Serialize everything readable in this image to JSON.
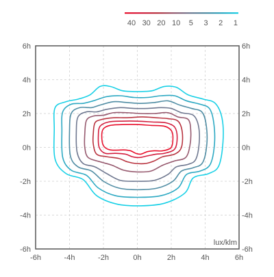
{
  "chart_data": {
    "type": "contour",
    "title": "",
    "unit_label": "lux/klm",
    "xlim": [
      -6,
      6
    ],
    "ylim": [
      -6,
      6
    ],
    "grid": true,
    "legend_placement": "top-right",
    "x_ticks": [
      {
        "value": -6,
        "label": "-6h"
      },
      {
        "value": -4,
        "label": "-4h"
      },
      {
        "value": -2,
        "label": "-2h"
      },
      {
        "value": 0,
        "label": "0h"
      },
      {
        "value": 2,
        "label": "2h"
      },
      {
        "value": 4,
        "label": "4h"
      },
      {
        "value": 6,
        "label": "6h"
      }
    ],
    "y_ticks": [
      {
        "value": -6,
        "label": "-6h"
      },
      {
        "value": -4,
        "label": "-4h"
      },
      {
        "value": -2,
        "label": "-2h"
      },
      {
        "value": 0,
        "label": "0h"
      },
      {
        "value": 2,
        "label": "2h"
      },
      {
        "value": 4,
        "label": "4h"
      },
      {
        "value": 6,
        "label": "6h"
      }
    ],
    "levels": [
      {
        "value": 40,
        "label": "40",
        "color": "#e8112d",
        "points": [
          [
            -2.1,
            0.7
          ],
          [
            -2.0,
            1.1
          ],
          [
            -1.6,
            1.3
          ],
          [
            -0.8,
            1.35
          ],
          [
            0,
            1.35
          ],
          [
            0.8,
            1.3
          ],
          [
            1.6,
            1.25
          ],
          [
            2.0,
            1.0
          ],
          [
            2.1,
            0.6
          ],
          [
            2.0,
            0.0
          ],
          [
            1.5,
            -0.2
          ],
          [
            1.0,
            -0.2
          ],
          [
            0.6,
            -0.25
          ],
          [
            0.2,
            -0.4
          ],
          [
            -0.1,
            -0.35
          ],
          [
            -0.4,
            -0.2
          ],
          [
            -0.8,
            -0.15
          ],
          [
            -1.6,
            -0.15
          ],
          [
            -2.0,
            0.1
          ]
        ]
      },
      {
        "value": 30,
        "label": "30",
        "color": "#d31c3c",
        "points": [
          [
            -2.3,
            0.7
          ],
          [
            -2.2,
            1.25
          ],
          [
            -1.7,
            1.5
          ],
          [
            -0.9,
            1.55
          ],
          [
            0,
            1.55
          ],
          [
            0.9,
            1.5
          ],
          [
            1.7,
            1.45
          ],
          [
            2.2,
            1.2
          ],
          [
            2.35,
            0.6
          ],
          [
            2.2,
            -0.1
          ],
          [
            1.6,
            -0.35
          ],
          [
            1.1,
            -0.4
          ],
          [
            0.6,
            -0.5
          ],
          [
            0.1,
            -0.6
          ],
          [
            -0.3,
            -0.55
          ],
          [
            -0.7,
            -0.4
          ],
          [
            -1.3,
            -0.35
          ],
          [
            -1.9,
            -0.35
          ],
          [
            -2.25,
            0.0
          ]
        ]
      },
      {
        "value": 20,
        "label": "20",
        "color": "#b8333f",
        "points": [
          [
            -2.6,
            0.8
          ],
          [
            -2.5,
            1.45
          ],
          [
            -2.1,
            1.65
          ],
          [
            -1.4,
            1.75
          ],
          [
            -0.6,
            1.75
          ],
          [
            0.3,
            1.8
          ],
          [
            1.1,
            1.75
          ],
          [
            1.8,
            1.7
          ],
          [
            2.4,
            1.55
          ],
          [
            2.65,
            0.9
          ],
          [
            2.6,
            0.0
          ],
          [
            2.2,
            -0.4
          ],
          [
            1.5,
            -0.55
          ],
          [
            1.0,
            -0.8
          ],
          [
            0.5,
            -0.95
          ],
          [
            -0.1,
            -0.95
          ],
          [
            -0.6,
            -0.85
          ],
          [
            -1.1,
            -0.65
          ],
          [
            -1.8,
            -0.55
          ],
          [
            -2.4,
            -0.4
          ],
          [
            -2.6,
            0.2
          ]
        ]
      },
      {
        "value": 10,
        "label": "10",
        "color": "#96596e",
        "points": [
          [
            -3.1,
            0.8
          ],
          [
            -3.0,
            1.6
          ],
          [
            -2.6,
            1.85
          ],
          [
            -2.0,
            1.9
          ],
          [
            -1.4,
            2.05
          ],
          [
            -0.6,
            2.05
          ],
          [
            0.2,
            2.0
          ],
          [
            1.0,
            2.0
          ],
          [
            1.8,
            2.05
          ],
          [
            2.4,
            1.8
          ],
          [
            3.0,
            1.65
          ],
          [
            3.15,
            1.0
          ],
          [
            3.1,
            0.1
          ],
          [
            2.85,
            -0.6
          ],
          [
            2.2,
            -0.8
          ],
          [
            1.5,
            -1.05
          ],
          [
            0.8,
            -1.4
          ],
          [
            0.0,
            -1.45
          ],
          [
            -0.8,
            -1.35
          ],
          [
            -1.5,
            -1.05
          ],
          [
            -2.2,
            -0.85
          ],
          [
            -2.9,
            -0.6
          ],
          [
            -3.1,
            0.0
          ]
        ]
      },
      {
        "value": 5,
        "label": "5",
        "color": "#6f7890",
        "points": [
          [
            -3.6,
            0.9
          ],
          [
            -3.5,
            1.8
          ],
          [
            -3.0,
            2.1
          ],
          [
            -2.4,
            2.1
          ],
          [
            -1.8,
            2.25
          ],
          [
            -1.0,
            2.35
          ],
          [
            -0.2,
            2.3
          ],
          [
            0.6,
            2.3
          ],
          [
            1.4,
            2.35
          ],
          [
            2.0,
            2.3
          ],
          [
            2.6,
            2.05
          ],
          [
            3.3,
            1.9
          ],
          [
            3.6,
            1.3
          ],
          [
            3.65,
            0.3
          ],
          [
            3.45,
            -0.7
          ],
          [
            3.0,
            -1.0
          ],
          [
            2.3,
            -1.15
          ],
          [
            1.8,
            -1.6
          ],
          [
            1.0,
            -1.95
          ],
          [
            0.0,
            -2.0
          ],
          [
            -1.0,
            -1.95
          ],
          [
            -1.8,
            -1.55
          ],
          [
            -2.5,
            -1.15
          ],
          [
            -3.2,
            -0.95
          ],
          [
            -3.55,
            -0.3
          ]
        ]
      },
      {
        "value": 3,
        "label": "3",
        "color": "#4f8ca3",
        "points": [
          [
            -4.0,
            1.0
          ],
          [
            -3.9,
            2.0
          ],
          [
            -3.4,
            2.35
          ],
          [
            -2.7,
            2.35
          ],
          [
            -2.2,
            2.5
          ],
          [
            -1.4,
            2.7
          ],
          [
            -0.6,
            2.65
          ],
          [
            0.2,
            2.6
          ],
          [
            1.0,
            2.65
          ],
          [
            1.8,
            2.75
          ],
          [
            2.5,
            2.5
          ],
          [
            3.2,
            2.3
          ],
          [
            3.8,
            2.1
          ],
          [
            4.05,
            1.4
          ],
          [
            4.1,
            0.2
          ],
          [
            3.85,
            -0.9
          ],
          [
            3.3,
            -1.2
          ],
          [
            2.6,
            -1.4
          ],
          [
            2.1,
            -2.0
          ],
          [
            1.2,
            -2.4
          ],
          [
            0.0,
            -2.5
          ],
          [
            -1.1,
            -2.4
          ],
          [
            -2.0,
            -2.0
          ],
          [
            -2.7,
            -1.4
          ],
          [
            -3.5,
            -1.15
          ],
          [
            -3.95,
            -0.5
          ]
        ]
      },
      {
        "value": 2,
        "label": "2",
        "color": "#2ba8c2",
        "points": [
          [
            -4.45,
            1.0
          ],
          [
            -4.4,
            2.1
          ],
          [
            -3.9,
            2.55
          ],
          [
            -3.2,
            2.6
          ],
          [
            -2.6,
            2.75
          ],
          [
            -1.8,
            3.0
          ],
          [
            -1.0,
            3.05
          ],
          [
            -0.2,
            2.95
          ],
          [
            0.6,
            2.95
          ],
          [
            1.4,
            3.05
          ],
          [
            2.2,
            3.05
          ],
          [
            2.9,
            2.75
          ],
          [
            3.7,
            2.55
          ],
          [
            4.25,
            2.3
          ],
          [
            4.5,
            1.5
          ],
          [
            4.55,
            0.2
          ],
          [
            4.3,
            -1.0
          ],
          [
            3.7,
            -1.4
          ],
          [
            2.9,
            -1.6
          ],
          [
            2.4,
            -2.4
          ],
          [
            1.4,
            -2.85
          ],
          [
            0.0,
            -2.95
          ],
          [
            -1.3,
            -2.85
          ],
          [
            -2.3,
            -2.4
          ],
          [
            -3.0,
            -1.65
          ],
          [
            -3.9,
            -1.35
          ],
          [
            -4.4,
            -0.6
          ]
        ]
      },
      {
        "value": 1,
        "label": "1",
        "color": "#18d0e6",
        "points": [
          [
            -4.9,
            1.1
          ],
          [
            -4.85,
            2.35
          ],
          [
            -4.2,
            2.7
          ],
          [
            -3.5,
            2.85
          ],
          [
            -2.8,
            3.1
          ],
          [
            -2.2,
            3.6
          ],
          [
            -1.6,
            3.6
          ],
          [
            -0.9,
            3.35
          ],
          [
            -0.3,
            3.3
          ],
          [
            0.3,
            3.3
          ],
          [
            0.9,
            3.35
          ],
          [
            1.6,
            3.6
          ],
          [
            2.3,
            3.55
          ],
          [
            3.0,
            3.1
          ],
          [
            3.9,
            2.85
          ],
          [
            4.6,
            2.6
          ],
          [
            5.0,
            1.7
          ],
          [
            5.05,
            0.3
          ],
          [
            4.8,
            -1.1
          ],
          [
            4.2,
            -1.55
          ],
          [
            3.3,
            -1.8
          ],
          [
            2.8,
            -2.7
          ],
          [
            1.6,
            -3.3
          ],
          [
            0.2,
            -3.45
          ],
          [
            -1.2,
            -3.35
          ],
          [
            -2.4,
            -2.85
          ],
          [
            -3.2,
            -1.9
          ],
          [
            -4.2,
            -1.55
          ],
          [
            -4.85,
            -0.7
          ]
        ]
      }
    ]
  }
}
